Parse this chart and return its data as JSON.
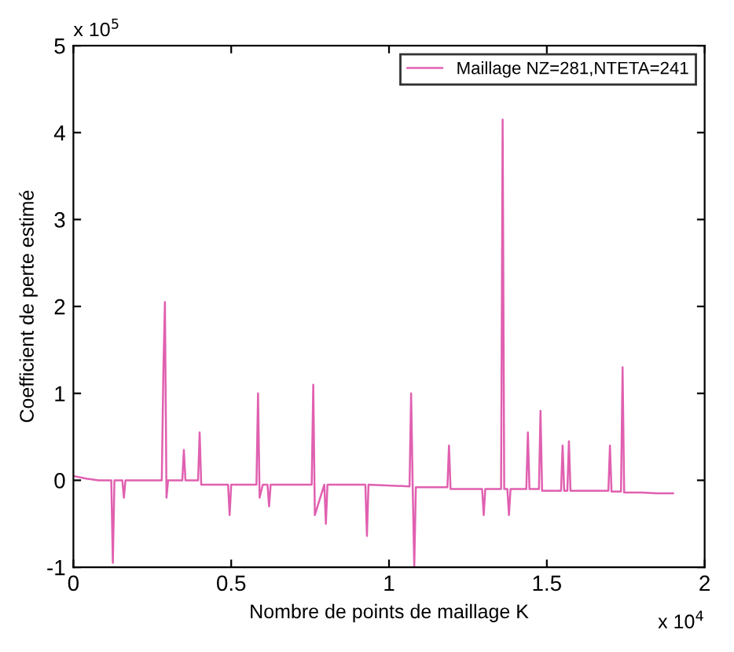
{
  "chart_data": {
    "type": "line",
    "xlabel": "Nombre de points de maillage K",
    "ylabel": "Coefficient de perte estimé",
    "annotations": [
      "x 10$^{5}$",
      "x 10$^{4}$"
    ],
    "xlim": [
      0,
      2
    ],
    "xticks": [
      0,
      0.5,
      1,
      1.5,
      2
    ],
    "ylim": [
      -1,
      5
    ],
    "yticks": [
      -1,
      0,
      1,
      2,
      3,
      4,
      5
    ],
    "grid": false,
    "legend": "top right",
    "series": [
      {
        "name": "Maillage NZ=281,NTETA=241",
        "color": "#e060b0",
        "x": [
          0,
          0.04,
          0.08,
          0.12,
          0.125,
          0.13,
          0.155,
          0.16,
          0.165,
          0.2,
          0.28,
          0.285,
          0.29,
          0.295,
          0.3,
          0.345,
          0.35,
          0.355,
          0.395,
          0.4,
          0.405,
          0.49,
          0.495,
          0.5,
          0.58,
          0.585,
          0.59,
          0.6,
          0.615,
          0.62,
          0.625,
          0.755,
          0.76,
          0.765,
          0.795,
          0.8,
          0.805,
          0.925,
          0.93,
          0.935,
          1.065,
          1.07,
          1.075,
          1.08,
          1.085,
          1.185,
          1.19,
          1.195,
          1.295,
          1.3,
          1.305,
          1.355,
          1.36,
          1.365,
          1.375,
          1.38,
          1.385,
          1.435,
          1.44,
          1.445,
          1.475,
          1.48,
          1.485,
          1.545,
          1.55,
          1.555,
          1.565,
          1.57,
          1.575,
          1.695,
          1.7,
          1.705,
          1.735,
          1.74,
          1.745,
          1.8,
          1.85,
          1.9
        ],
        "values": [
          0.05,
          0.02,
          0.0,
          0.0,
          -0.95,
          0.0,
          0.0,
          -0.2,
          0.0,
          0.0,
          0.0,
          1.25,
          2.05,
          -0.2,
          0.0,
          0.0,
          0.35,
          0.0,
          0.0,
          0.55,
          -0.05,
          -0.05,
          -0.4,
          -0.05,
          -0.05,
          1.0,
          -0.2,
          -0.05,
          -0.05,
          -0.3,
          -0.05,
          -0.05,
          1.1,
          -0.4,
          -0.05,
          -0.5,
          -0.05,
          -0.05,
          -0.64,
          -0.05,
          -0.07,
          1.0,
          -0.07,
          -1.0,
          -0.08,
          -0.08,
          0.4,
          -0.1,
          -0.1,
          -0.4,
          -0.1,
          -0.1,
          4.15,
          -0.1,
          -0.1,
          -0.4,
          -0.1,
          -0.1,
          0.55,
          -0.1,
          -0.1,
          0.8,
          -0.12,
          -0.12,
          0.4,
          -0.12,
          -0.12,
          0.45,
          -0.12,
          -0.12,
          0.4,
          -0.13,
          -0.13,
          1.3,
          -0.14,
          -0.14,
          -0.15,
          -0.15
        ]
      }
    ]
  }
}
